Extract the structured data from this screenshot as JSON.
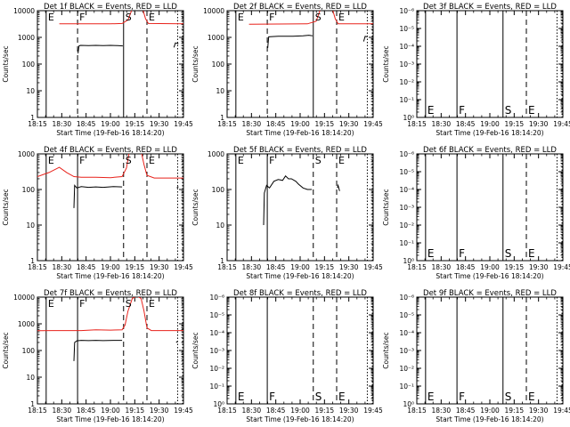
{
  "figure": {
    "xlabel": "Start Time (19-Feb-16 18:14:20)",
    "ylabel": "Counts/sec",
    "xticks": [
      "18:15",
      "18:30",
      "18:45",
      "19:00",
      "19:15",
      "19:30",
      "19:45"
    ],
    "colors": {
      "events": "#000000",
      "lld": "#e8221b",
      "axes": "#000000"
    }
  },
  "chart_data": [
    {
      "type": "line",
      "title": "Det 1f BLACK = Events, RED = LLD",
      "yscale": "log",
      "ylim": [
        1,
        10000
      ],
      "yticks": [
        "1",
        "10",
        "100",
        "1000",
        "10000"
      ],
      "xlim": [
        0,
        100
      ],
      "markers": [
        {
          "x": 6,
          "style": "solid",
          "label": "E"
        },
        {
          "x": 27.5,
          "style": "dashed",
          "label": "F"
        },
        {
          "x": 59,
          "style": "solid",
          "label": "S"
        },
        {
          "x": 75,
          "style": "dashed",
          "label": "E"
        },
        {
          "x": 96,
          "style": "dotted",
          "label": ""
        },
        {
          "x": 101,
          "style": "dotted",
          "label": ""
        }
      ],
      "series": [
        {
          "name": "Events",
          "color": "#000000",
          "segments": [
            [
              [
                27.8,
                250
              ],
              [
                28.5,
                480
              ],
              [
                29.5,
                500
              ],
              [
                35,
                490
              ],
              [
                40,
                500
              ],
              [
                45,
                495
              ],
              [
                50,
                500
              ],
              [
                55,
                495
              ],
              [
                58.5,
                480
              ]
            ],
            [
              [
                93.5,
                420
              ],
              [
                94.5,
                620
              ],
              [
                95.5,
                600
              ],
              [
                96.5,
                580
              ]
            ]
          ]
        },
        {
          "name": "LLD",
          "color": "#e8221b",
          "segments": [
            [
              [
                15,
                3200
              ],
              [
                50,
                3200
              ],
              [
                58,
                3300
              ],
              [
                62,
                4500
              ],
              [
                65,
                12000
              ],
              [
                72,
                12000
              ],
              [
                74,
                5000
              ],
              [
                76,
                3300
              ],
              [
                100,
                3200
              ]
            ]
          ]
        }
      ]
    },
    {
      "type": "line",
      "title": "Det 2f BLACK = Events, RED = LLD",
      "yscale": "log",
      "ylim": [
        1,
        10000
      ],
      "yticks": [
        "1",
        "10",
        "100",
        "1000",
        "10000"
      ],
      "xlim": [
        0,
        100
      ],
      "markers": [
        {
          "x": 6,
          "style": "solid",
          "label": "E"
        },
        {
          "x": 27.5,
          "style": "dashed",
          "label": "F"
        },
        {
          "x": 59,
          "style": "solid",
          "label": "S"
        },
        {
          "x": 75,
          "style": "dashed",
          "label": "E"
        },
        {
          "x": 96,
          "style": "dotted",
          "label": ""
        },
        {
          "x": 101,
          "style": "dotted",
          "label": ""
        }
      ],
      "series": [
        {
          "name": "Events",
          "color": "#000000",
          "segments": [
            [
              [
                27.8,
                400
              ],
              [
                28.5,
                1050
              ],
              [
                35,
                1100
              ],
              [
                45,
                1100
              ],
              [
                52,
                1150
              ],
              [
                56,
                1200
              ],
              [
                58.5,
                1150
              ]
            ],
            [
              [
                93.5,
                700
              ],
              [
                94.5,
                1100
              ],
              [
                96,
                1050
              ]
            ]
          ]
        },
        {
          "name": "LLD",
          "color": "#e8221b",
          "segments": [
            [
              [
                15,
                3100
              ],
              [
                55,
                3200
              ],
              [
                61,
                4000
              ],
              [
                64,
                12000
              ],
              [
                72,
                12000
              ],
              [
                74,
                5000
              ],
              [
                76,
                3200
              ],
              [
                100,
                3200
              ]
            ]
          ]
        }
      ]
    },
    {
      "type": "line",
      "title": "Det 3f BLACK = Events, RED = LLD",
      "yscale": "log",
      "ylim": [
        1e-06,
        1e-05
      ],
      "yticks": [
        "10⁰",
        "10⁻¹",
        "10⁻²",
        "10⁻³",
        "10⁻⁴",
        "10⁻⁵",
        "10⁻⁶"
      ],
      "xlim": [
        0,
        100
      ],
      "markers": [
        {
          "x": 6,
          "style": "solid",
          "label": "E"
        },
        {
          "x": 27.5,
          "style": "solid",
          "label": "F"
        },
        {
          "x": 59,
          "style": "solid",
          "label": "S"
        },
        {
          "x": 75,
          "style": "dashed",
          "label": "E"
        },
        {
          "x": 96,
          "style": "dotted",
          "label": ""
        },
        {
          "x": 101,
          "style": "dotted",
          "label": ""
        }
      ],
      "series": []
    },
    {
      "type": "line",
      "title": "Det 4f BLACK = Events, RED = LLD",
      "yscale": "log",
      "ylim": [
        1,
        1000
      ],
      "yticks": [
        "1",
        "10",
        "100",
        "1000"
      ],
      "xlim": [
        0,
        100
      ],
      "markers": [
        {
          "x": 6,
          "style": "solid",
          "label": "E"
        },
        {
          "x": 27.5,
          "style": "solid",
          "label": "F"
        },
        {
          "x": 59,
          "style": "dashed",
          "label": "S"
        },
        {
          "x": 75,
          "style": "dashed",
          "label": "E"
        },
        {
          "x": 96,
          "style": "dotted",
          "label": ""
        },
        {
          "x": 101,
          "style": "dotted",
          "label": ""
        }
      ],
      "series": [
        {
          "name": "Events",
          "color": "#000000",
          "segments": [
            [
              [
                25,
                30
              ],
              [
                25.5,
                130
              ],
              [
                27,
                110
              ],
              [
                30,
                120
              ],
              [
                35,
                115
              ],
              [
                40,
                118
              ],
              [
                45,
                115
              ],
              [
                52,
                120
              ],
              [
                58,
                118
              ]
            ],
            [
              [
                95.5,
                110
              ],
              [
                96.5,
                120
              ]
            ]
          ]
        },
        {
          "name": "LLD",
          "color": "#e8221b",
          "segments": [
            [
              [
                0,
                230
              ],
              [
                8,
                300
              ],
              [
                15,
                420
              ],
              [
                20,
                300
              ],
              [
                25,
                230
              ],
              [
                30,
                220
              ],
              [
                40,
                220
              ],
              [
                50,
                215
              ],
              [
                58,
                230
              ],
              [
                61,
                400
              ],
              [
                63,
                1200
              ],
              [
                71,
                1200
              ],
              [
                73,
                500
              ],
              [
                75,
                250
              ],
              [
                80,
                210
              ],
              [
                90,
                210
              ],
              [
                100,
                210
              ]
            ]
          ]
        }
      ]
    },
    {
      "type": "line",
      "title": "Det 5f BLACK = Events, RED = LLD",
      "yscale": "log",
      "ylim": [
        1,
        1000
      ],
      "yticks": [
        "1",
        "10",
        "100",
        "1000"
      ],
      "xlim": [
        0,
        100
      ],
      "markers": [
        {
          "x": 6,
          "style": "solid",
          "label": "E"
        },
        {
          "x": 27.5,
          "style": "solid",
          "label": "F"
        },
        {
          "x": 59,
          "style": "dashed",
          "label": "S"
        },
        {
          "x": 75,
          "style": "dashed",
          "label": "E"
        },
        {
          "x": 96,
          "style": "dotted",
          "label": ""
        },
        {
          "x": 101,
          "style": "dotted",
          "label": ""
        }
      ],
      "series": [
        {
          "name": "Events",
          "color": "#000000",
          "segments": [
            [
              [
                25,
                10
              ],
              [
                25.5,
                80
              ],
              [
                27,
                130
              ],
              [
                29,
                110
              ],
              [
                32,
                170
              ],
              [
                35,
                190
              ],
              [
                38,
                180
              ],
              [
                40,
                240
              ],
              [
                42,
                200
              ],
              [
                44,
                200
              ],
              [
                47,
                170
              ],
              [
                49,
                140
              ],
              [
                52,
                110
              ],
              [
                55,
                100
              ],
              [
                58,
                100
              ]
            ],
            [
              [
                75.5,
                110
              ],
              [
                76,
                130
              ],
              [
                77,
                90
              ]
            ]
          ]
        }
      ]
    },
    {
      "type": "line",
      "title": "Det 6f BLACK = Events, RED = LLD",
      "yscale": "log",
      "ylim": [
        1e-06,
        1e-05
      ],
      "yticks": [
        "10⁰",
        "10⁻¹",
        "10⁻²",
        "10⁻³",
        "10⁻⁴",
        "10⁻⁵",
        "10⁻⁶"
      ],
      "xlim": [
        0,
        100
      ],
      "markers": [
        {
          "x": 6,
          "style": "solid",
          "label": "E"
        },
        {
          "x": 27.5,
          "style": "solid",
          "label": "F"
        },
        {
          "x": 59,
          "style": "solid",
          "label": "S"
        },
        {
          "x": 75,
          "style": "dashed",
          "label": "E"
        },
        {
          "x": 96,
          "style": "dotted",
          "label": ""
        },
        {
          "x": 101,
          "style": "dotted",
          "label": ""
        }
      ],
      "series": []
    },
    {
      "type": "line",
      "title": "Det 7f BLACK = Events, RED = LLD",
      "yscale": "log",
      "ylim": [
        1,
        10000
      ],
      "yticks": [
        "1",
        "10",
        "100",
        "1000",
        "10000"
      ],
      "xlim": [
        0,
        100
      ],
      "markers": [
        {
          "x": 6,
          "style": "solid",
          "label": "E"
        },
        {
          "x": 27.5,
          "style": "solid",
          "label": "F"
        },
        {
          "x": 59,
          "style": "dashed",
          "label": "S"
        },
        {
          "x": 75,
          "style": "dashed",
          "label": "E"
        },
        {
          "x": 96,
          "style": "dotted",
          "label": ""
        },
        {
          "x": 101,
          "style": "dotted",
          "label": ""
        }
      ],
      "series": [
        {
          "name": "Events",
          "color": "#000000",
          "segments": [
            [
              [
                25,
                40
              ],
              [
                25.5,
                200
              ],
              [
                27,
                230
              ],
              [
                30,
                240
              ],
              [
                35,
                235
              ],
              [
                40,
                240
              ],
              [
                45,
                235
              ],
              [
                52,
                240
              ],
              [
                58,
                240
              ]
            ],
            [
              [
                95,
                200
              ],
              [
                96,
                220
              ]
            ]
          ]
        },
        {
          "name": "LLD",
          "color": "#e8221b",
          "segments": [
            [
              [
                0,
                550
              ],
              [
                10,
                560
              ],
              [
                20,
                560
              ],
              [
                30,
                560
              ],
              [
                40,
                600
              ],
              [
                50,
                580
              ],
              [
                58,
                600
              ],
              [
                60,
                900
              ],
              [
                62,
                3000
              ],
              [
                65,
                9000
              ],
              [
                68,
                11000
              ],
              [
                71,
                9000
              ],
              [
                73,
                3000
              ],
              [
                75,
                700
              ],
              [
                78,
                560
              ],
              [
                90,
                560
              ],
              [
                100,
                560
              ]
            ]
          ]
        }
      ]
    },
    {
      "type": "line",
      "title": "Det 8f BLACK = Events, RED = LLD",
      "yscale": "log",
      "ylim": [
        1e-06,
        1e-05
      ],
      "yticks": [
        "10⁰",
        "10⁻¹",
        "10⁻²",
        "10⁻³",
        "10⁻⁴",
        "10⁻⁵",
        "10⁻⁶"
      ],
      "xlim": [
        0,
        100
      ],
      "markers": [
        {
          "x": 6,
          "style": "solid",
          "label": "E"
        },
        {
          "x": 27.5,
          "style": "solid",
          "label": "F"
        },
        {
          "x": 59,
          "style": "dashed",
          "label": "S"
        },
        {
          "x": 75,
          "style": "dashed",
          "label": "E"
        },
        {
          "x": 96,
          "style": "dotted",
          "label": ""
        },
        {
          "x": 101,
          "style": "dotted",
          "label": ""
        }
      ],
      "series": []
    },
    {
      "type": "line",
      "title": "Det 9f BLACK = Events, RED = LLD",
      "yscale": "log",
      "ylim": [
        1e-06,
        1e-05
      ],
      "yticks": [
        "10⁰",
        "10⁻¹",
        "10⁻²",
        "10⁻³",
        "10⁻⁴",
        "10⁻⁵",
        "10⁻⁶"
      ],
      "xlim": [
        0,
        100
      ],
      "markers": [
        {
          "x": 6,
          "style": "solid",
          "label": "E"
        },
        {
          "x": 27.5,
          "style": "solid",
          "label": "F"
        },
        {
          "x": 59,
          "style": "solid",
          "label": "S"
        },
        {
          "x": 75,
          "style": "dashed",
          "label": "E"
        },
        {
          "x": 96,
          "style": "dotted",
          "label": ""
        },
        {
          "x": 101,
          "style": "dotted",
          "label": ""
        }
      ],
      "series": []
    }
  ]
}
